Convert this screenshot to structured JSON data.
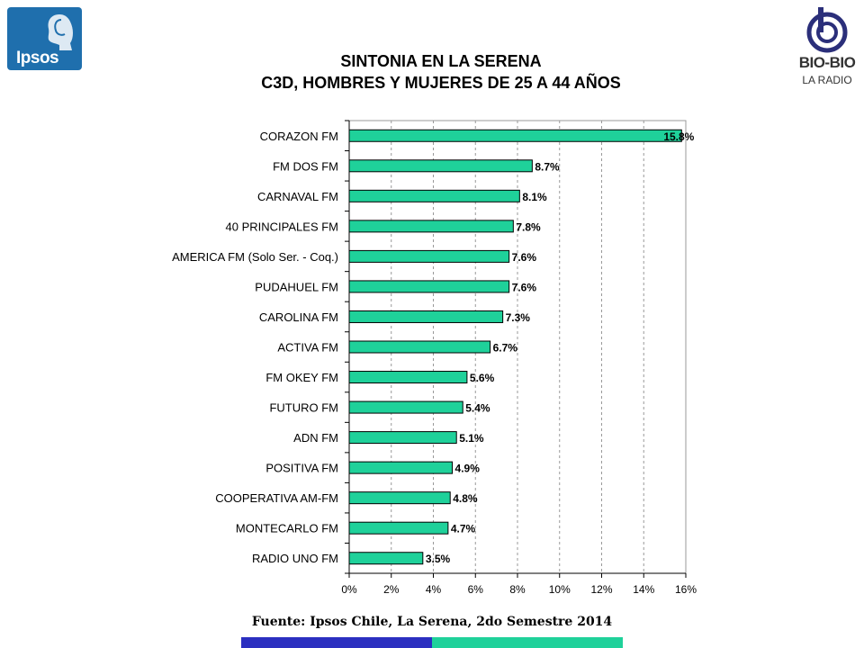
{
  "header": {
    "title_line1": "SINTONIA EN LA SERENA",
    "title_line2": "C3D, HOMBRES Y MUJERES DE 25 A 44 AÑOS"
  },
  "logos": {
    "ipsos": "Ipsos",
    "biobio_name": "BIO-BIO",
    "biobio_sub": "LA RADIO"
  },
  "footer": {
    "source": "Fuente: Ipsos Chile, La Serena, 2do Semestre 2014"
  },
  "colors": {
    "bar_fill": "#1fd19a",
    "footer_left": "#2b2fc0",
    "footer_right": "#1fd19a",
    "ipsos_blue": "#1f6fad"
  },
  "chart_data": {
    "type": "bar",
    "orientation": "horizontal",
    "categories": [
      "CORAZON FM",
      "FM DOS FM",
      "CARNAVAL FM",
      "40 PRINCIPALES FM",
      "AMERICA FM  (Solo Ser. - Coq.)",
      "PUDAHUEL FM",
      "CAROLINA FM",
      "ACTIVA  FM",
      "FM OKEY FM",
      "FUTURO FM",
      "ADN FM",
      "POSITIVA FM",
      "COOPERATIVA AM-FM",
      "MONTECARLO FM",
      "RADIO UNO FM"
    ],
    "values": [
      15.8,
      8.7,
      8.1,
      7.8,
      7.6,
      7.6,
      7.3,
      6.7,
      5.6,
      5.4,
      5.1,
      4.9,
      4.8,
      4.7,
      3.5
    ],
    "data_labels": [
      "15.8%",
      "8.7%",
      "8.1%",
      "7.8%",
      "7.6%",
      "7.6%",
      "7.3%",
      "6.7%",
      "5.6%",
      "5.4%",
      "5.1%",
      "4.9%",
      "4.8%",
      "4.7%",
      "3.5%"
    ],
    "x_ticks": [
      "0%",
      "2%",
      "4%",
      "6%",
      "8%",
      "10%",
      "12%",
      "14%",
      "16%"
    ],
    "xlim": [
      0,
      16
    ],
    "grid": "vertical dashed",
    "legend": "none"
  }
}
